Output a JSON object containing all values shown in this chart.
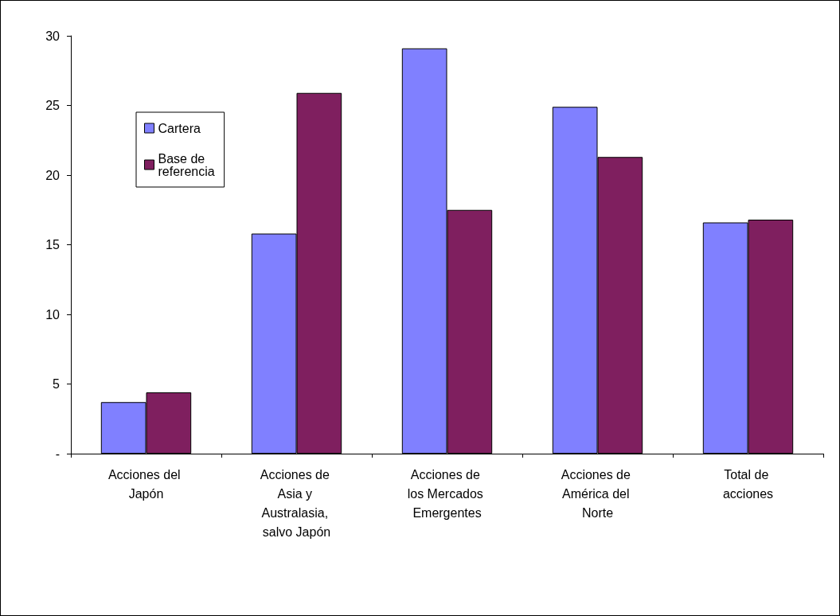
{
  "chart_data": {
    "type": "bar",
    "categories": [
      "Acciones del Japón",
      "Acciones de Asia y Australasia, salvo Japón",
      "Acciones de los Mercados Emergentes",
      "Acciones de América del Norte",
      "Total de acciones"
    ],
    "series": [
      {
        "name": "Cartera",
        "color": "#8080ff",
        "values": [
          3.7,
          15.8,
          29.1,
          24.9,
          16.6
        ]
      },
      {
        "name": "Base de referencia",
        "color": "#7f1f5f",
        "values": [
          4.4,
          25.9,
          17.5,
          21.3,
          16.8
        ]
      }
    ],
    "ylim": [
      0,
      30
    ],
    "yticks": [
      {
        "value": 0,
        "label": "-"
      },
      5,
      10,
      15,
      20,
      25,
      30
    ],
    "grid": false,
    "legend": "top left"
  }
}
